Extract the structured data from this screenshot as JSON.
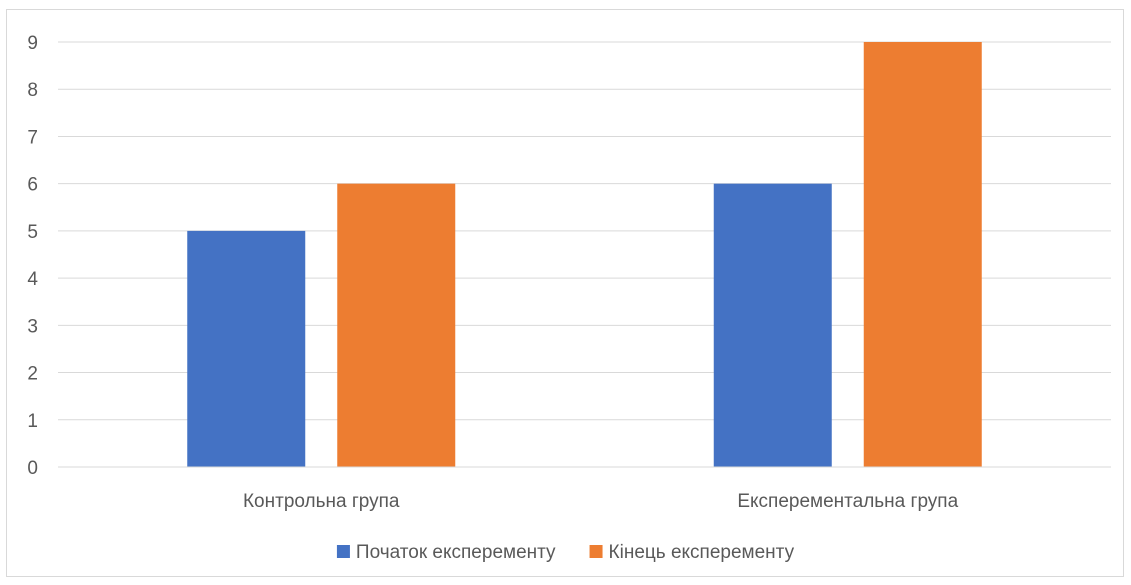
{
  "chart_data": {
    "type": "bar",
    "categories": [
      "Контрольна група",
      "Експерементальна група"
    ],
    "series": [
      {
        "name": "Початок експеременту",
        "values": [
          5,
          6
        ],
        "color": "#4472C4"
      },
      {
        "name": "Кінець експеременту",
        "values": [
          6,
          9
        ],
        "color": "#ED7D31"
      }
    ],
    "yticks": [
      "0",
      "1",
      "2",
      "3",
      "4",
      "5",
      "6",
      "7",
      "8",
      "9"
    ],
    "ylim": [
      0,
      9
    ],
    "grid": true,
    "legend_position": "bottom",
    "gridline_color": "#d9d9d9",
    "title": "",
    "xlabel": "",
    "ylabel": ""
  }
}
